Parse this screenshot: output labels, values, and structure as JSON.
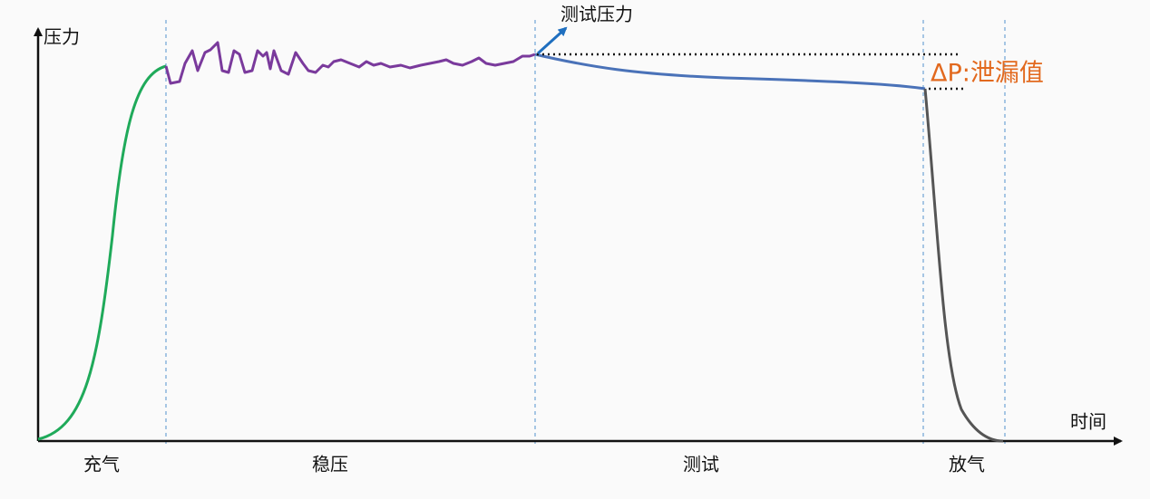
{
  "labels": {
    "y_axis": "压力",
    "x_axis": "时间",
    "test_pressure": "测试压力",
    "leak": "ΔP:泄漏值"
  },
  "phases": [
    "充气",
    "稳压",
    "测试",
    "放气"
  ]
}
